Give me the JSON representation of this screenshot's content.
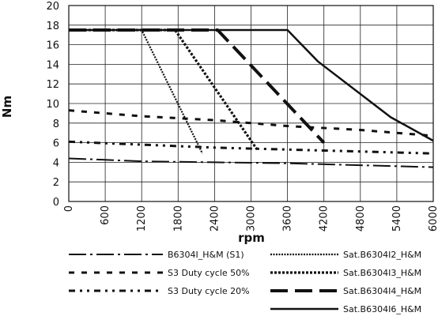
{
  "chart_data": {
    "type": "line",
    "title": "",
    "xlabel": "rpm",
    "ylabel": "Nm",
    "xlim": [
      0,
      6000
    ],
    "ylim": [
      0,
      20
    ],
    "xticks": [
      "0",
      "600",
      "1200",
      "1800",
      "2400",
      "3000",
      "3600",
      "4200",
      "4800",
      "5400",
      "6000"
    ],
    "yticks": [
      "0",
      "2",
      "4",
      "6",
      "8",
      "10",
      "12",
      "14",
      "16",
      "18",
      "20"
    ],
    "grid": true,
    "legend_position": "bottom",
    "series": [
      {
        "name": "B6304I_H&M (S1)",
        "style": "dash-dot",
        "color": "#111111",
        "points": [
          [
            0,
            4.4
          ],
          [
            1200,
            4.1
          ],
          [
            2400,
            4.0
          ],
          [
            3600,
            3.9
          ],
          [
            4800,
            3.7
          ],
          [
            6000,
            3.5
          ]
        ]
      },
      {
        "name": "S3 Duty cycle 50%",
        "style": "dashed",
        "color": "#111111",
        "points": [
          [
            0,
            9.3
          ],
          [
            1200,
            8.7
          ],
          [
            2400,
            8.3
          ],
          [
            3600,
            7.7
          ],
          [
            4800,
            7.3
          ],
          [
            6000,
            6.7
          ]
        ]
      },
      {
        "name": "S3 Duty cycle 20%",
        "style": "dash-dot-dot",
        "color": "#111111",
        "points": [
          [
            0,
            6.1
          ],
          [
            1200,
            5.8
          ],
          [
            2400,
            5.5
          ],
          [
            3600,
            5.3
          ],
          [
            4800,
            5.1
          ],
          [
            6000,
            4.9
          ]
        ]
      },
      {
        "name": "Sat.B6304I2_H&M",
        "style": "dotted",
        "color": "#111111",
        "points": [
          [
            0,
            17.5
          ],
          [
            1200,
            17.5
          ],
          [
            2200,
            4.9
          ]
        ]
      },
      {
        "name": "Sat.B6304I3_H&M",
        "style": "dotted-heavy",
        "color": "#111111",
        "points": [
          [
            0,
            17.5
          ],
          [
            1750,
            17.5
          ],
          [
            3100,
            5.3
          ]
        ]
      },
      {
        "name": "Sat.B6304I4_H&M",
        "style": "long-dash",
        "color": "#111111",
        "points": [
          [
            0,
            17.5
          ],
          [
            2450,
            17.5
          ],
          [
            4200,
            6.0
          ]
        ]
      },
      {
        "name": "Sat.B6304I6_H&M",
        "style": "solid",
        "color": "#111111",
        "points": [
          [
            0,
            17.5
          ],
          [
            3600,
            17.5
          ],
          [
            4100,
            14.3
          ],
          [
            5300,
            8.6
          ],
          [
            6000,
            6.2
          ]
        ]
      }
    ]
  }
}
